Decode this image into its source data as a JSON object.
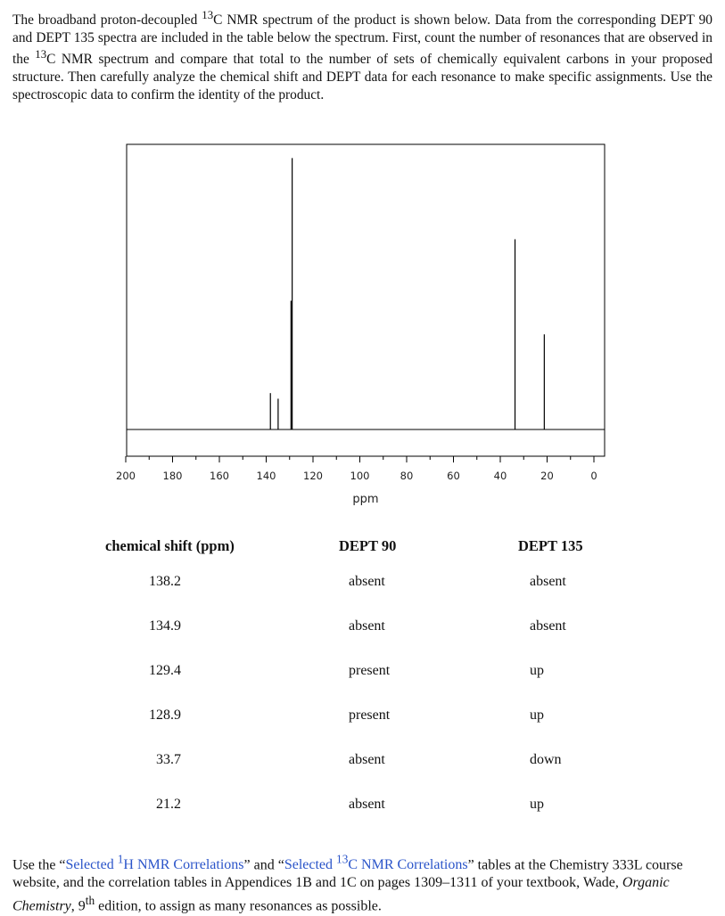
{
  "intro": {
    "part1": "The broadband proton-decoupled ",
    "sup": "13",
    "part2": "C NMR spectrum of the product is shown below.  Data from the corresponding DEPT 90 and DEPT 135 spectra are included in the table below the spectrum.  First, count the number of resonances that are observed in the ",
    "sup2": "13",
    "part3": "C NMR spectrum and compare that total to the number of sets of chemically equivalent carbons in your proposed structure.  Then carefully analyze the chemical shift and DEPT data for each resonance to make specific assignments.  Use the spectroscopic data to confirm the identity of the product."
  },
  "chart_data": {
    "type": "line",
    "xlabel": "ppm",
    "xlim": [
      200,
      0
    ],
    "x_reversed": true,
    "x_ticks": [
      200,
      180,
      160,
      140,
      120,
      100,
      80,
      60,
      40,
      20,
      0
    ],
    "x_tick_labels": [
      "200",
      "180",
      "160",
      "140",
      "120",
      "100",
      "80",
      "60",
      "40",
      "20",
      "0"
    ],
    "peaks": [
      {
        "ppm": 138.2,
        "height": 0.13
      },
      {
        "ppm": 134.9,
        "height": 0.11
      },
      {
        "ppm": 129.4,
        "height": 0.46
      },
      {
        "ppm": 128.9,
        "height": 0.97
      },
      {
        "ppm": 33.7,
        "height": 0.68
      },
      {
        "ppm": 21.2,
        "height": 0.34
      }
    ]
  },
  "table": {
    "headers": [
      "chemical shift (ppm)",
      "DEPT 90",
      "DEPT 135"
    ],
    "rows": [
      [
        "138.2",
        "absent",
        "absent"
      ],
      [
        "134.9",
        "absent",
        "absent"
      ],
      [
        "129.4",
        "present",
        "up"
      ],
      [
        "128.9",
        "present",
        "up"
      ],
      [
        "33.7",
        "absent",
        "down"
      ],
      [
        "21.2",
        "absent",
        "up"
      ]
    ]
  },
  "footer": {
    "t1": "Use the “",
    "link1a": "Selected ",
    "link1sup": "1",
    "link1b": "H NMR Correlations",
    "t2": "” and “",
    "link2a": "Selected ",
    "link2sup": "13",
    "link2b": "C NMR Correlations",
    "t3": "” tables at the Chemistry 333L course website, and the correlation tables in Appendices 1B and 1C on pages 1309–1311 of your textbook, Wade, ",
    "italic": "Organic Chemistry",
    "t4": ", 9",
    "sup": "th",
    "t5": " edition, to assign as many resonances as possible."
  }
}
